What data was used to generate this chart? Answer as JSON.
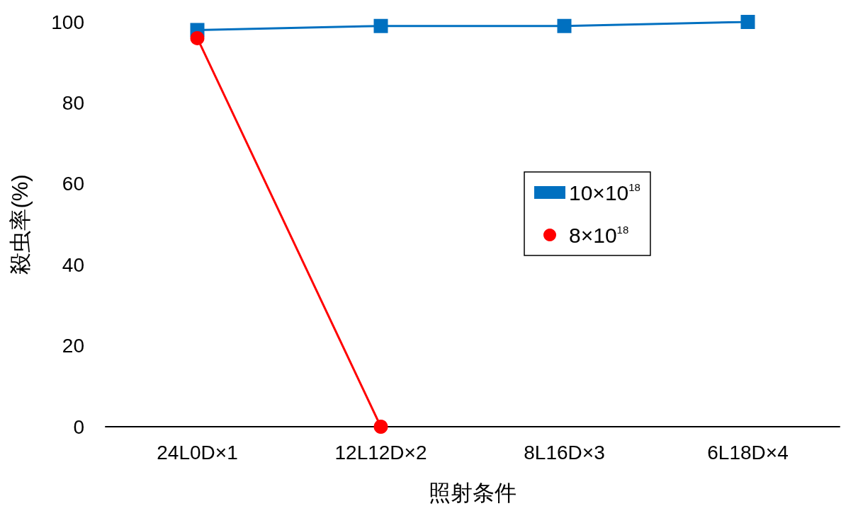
{
  "chart_data": {
    "type": "line",
    "xlabel": "照射条件",
    "ylabel": "殺虫率(%)",
    "categories": [
      "24L0D×1",
      "12L12D×2",
      "8L16D×3",
      "6L18D×4"
    ],
    "series": [
      {
        "name": "10×10$^{18}$",
        "color": "#0070c0",
        "marker": "square",
        "values": [
          98,
          99,
          99,
          100
        ]
      },
      {
        "name": "8×10$^{18}$",
        "color": "#ff0000",
        "marker": "circle",
        "values": [
          96,
          0,
          null,
          null
        ]
      }
    ],
    "ylim": [
      0,
      100
    ],
    "yticks": [
      0,
      20,
      40,
      60,
      80,
      100
    ],
    "grid": false,
    "legend": "right",
    "line_style": "solid"
  }
}
